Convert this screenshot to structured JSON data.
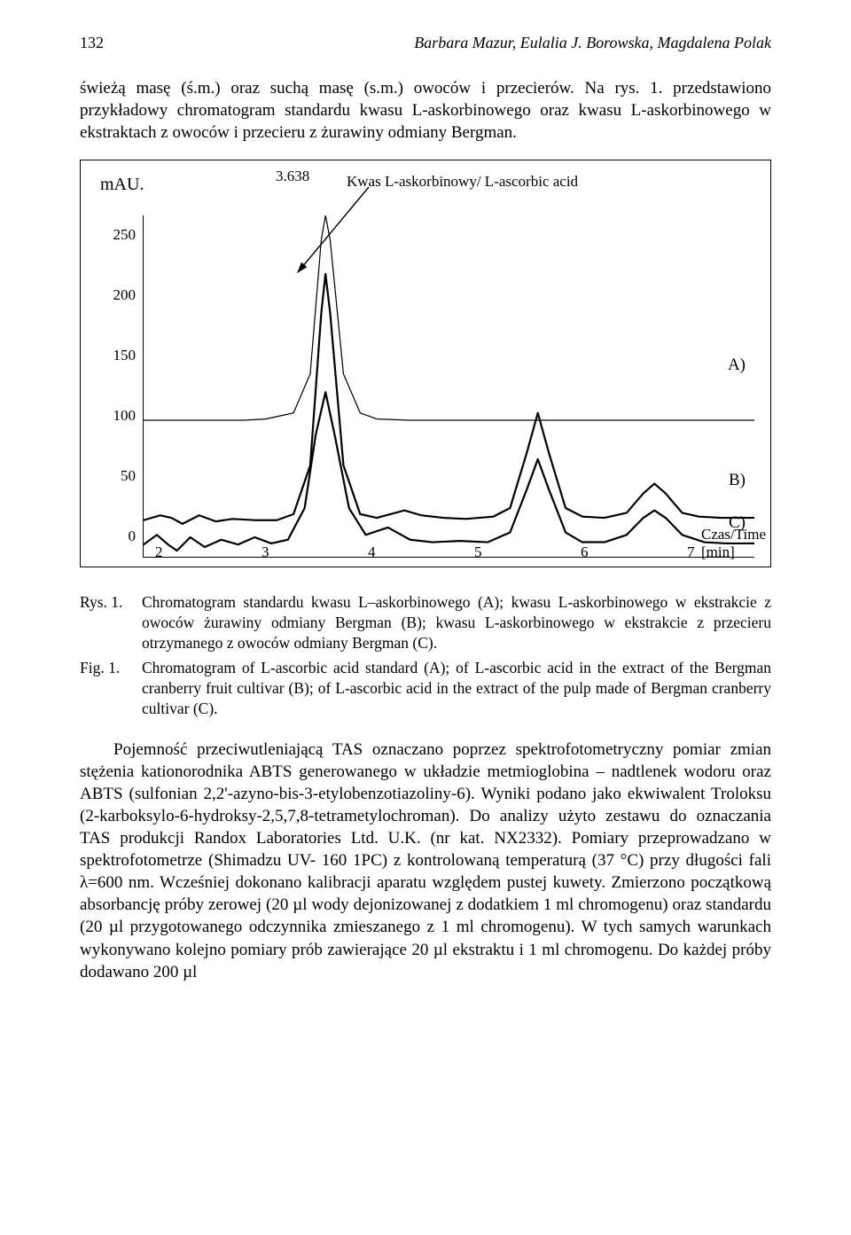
{
  "header": {
    "page_number": "132",
    "authors": "Barbara Mazur, Eulalia J. Borowska, Magdalena Polak"
  },
  "intro_paragraph": "świeżą masę (ś.m.) oraz suchą masę (s.m.) owoców i przecierów. Na rys. 1. przedstawiono przykładowy chromatogram standardu kwasu L-askorbinowego oraz kwasu L-askorbinowego w ekstraktach z owoców i przecieru z żurawiny odmiany Bergman.",
  "chart": {
    "type": "chromatogram",
    "y_axis_label": "mAU.",
    "peak_time_label": "3.638",
    "legend_text": "Kwas L-askorbinowy/ L-ascorbic acid",
    "y_ticks": [
      0,
      50,
      100,
      150,
      200,
      250
    ],
    "y_range": [
      0,
      280
    ],
    "x_ticks": [
      2,
      3,
      4,
      5,
      6,
      7
    ],
    "x_range": [
      2,
      7.5
    ],
    "x_axis_title": "Czas/Time [min]",
    "trace_labels": [
      "A)",
      "B)",
      "C)"
    ],
    "line_color": "#000000",
    "background_color": "#ffffff",
    "frame_color": "#000000",
    "line_widths": {
      "A": 1.2,
      "B": 2.2,
      "C": 2.2
    },
    "traces": {
      "A": {
        "baseline": 112,
        "points": [
          [
            2.0,
            112
          ],
          [
            2.3,
            112
          ],
          [
            2.6,
            112
          ],
          [
            2.9,
            112
          ],
          [
            3.1,
            113
          ],
          [
            3.35,
            118
          ],
          [
            3.5,
            150
          ],
          [
            3.6,
            260
          ],
          [
            3.638,
            280
          ],
          [
            3.68,
            260
          ],
          [
            3.8,
            150
          ],
          [
            3.95,
            118
          ],
          [
            4.1,
            113
          ],
          [
            4.4,
            112
          ],
          [
            5.0,
            112
          ],
          [
            5.4,
            112
          ],
          [
            5.6,
            112
          ],
          [
            5.8,
            112
          ],
          [
            6.0,
            112
          ],
          [
            6.4,
            112
          ],
          [
            6.8,
            112
          ],
          [
            7.2,
            112
          ],
          [
            7.5,
            112
          ]
        ]
      },
      "B": {
        "baseline": 28,
        "points": [
          [
            2.0,
            30
          ],
          [
            2.15,
            34
          ],
          [
            2.25,
            32
          ],
          [
            2.35,
            27
          ],
          [
            2.5,
            34
          ],
          [
            2.65,
            29
          ],
          [
            2.8,
            31
          ],
          [
            3.0,
            30
          ],
          [
            3.2,
            30
          ],
          [
            3.35,
            35
          ],
          [
            3.5,
            75
          ],
          [
            3.6,
            200
          ],
          [
            3.638,
            232
          ],
          [
            3.68,
            200
          ],
          [
            3.8,
            75
          ],
          [
            3.95,
            35
          ],
          [
            4.1,
            32
          ],
          [
            4.35,
            38
          ],
          [
            4.5,
            34
          ],
          [
            4.7,
            32
          ],
          [
            4.9,
            31
          ],
          [
            5.15,
            33
          ],
          [
            5.3,
            40
          ],
          [
            5.45,
            85
          ],
          [
            5.55,
            118
          ],
          [
            5.65,
            85
          ],
          [
            5.8,
            40
          ],
          [
            5.95,
            33
          ],
          [
            6.15,
            32
          ],
          [
            6.35,
            36
          ],
          [
            6.5,
            52
          ],
          [
            6.6,
            60
          ],
          [
            6.7,
            52
          ],
          [
            6.85,
            36
          ],
          [
            7.0,
            33
          ],
          [
            7.2,
            32
          ],
          [
            7.5,
            32
          ]
        ]
      },
      "C": {
        "baseline": 8,
        "points": [
          [
            2.0,
            10
          ],
          [
            2.12,
            18
          ],
          [
            2.22,
            10
          ],
          [
            2.3,
            5
          ],
          [
            2.42,
            16
          ],
          [
            2.55,
            8
          ],
          [
            2.7,
            14
          ],
          [
            2.85,
            10
          ],
          [
            3.0,
            16
          ],
          [
            3.15,
            11
          ],
          [
            3.3,
            14
          ],
          [
            3.45,
            40
          ],
          [
            3.55,
            100
          ],
          [
            3.638,
            135
          ],
          [
            3.72,
            100
          ],
          [
            3.85,
            40
          ],
          [
            4.0,
            18
          ],
          [
            4.2,
            24
          ],
          [
            4.4,
            14
          ],
          [
            4.6,
            12
          ],
          [
            4.85,
            13
          ],
          [
            5.1,
            12
          ],
          [
            5.3,
            20
          ],
          [
            5.45,
            55
          ],
          [
            5.55,
            80
          ],
          [
            5.65,
            55
          ],
          [
            5.8,
            20
          ],
          [
            5.95,
            12
          ],
          [
            6.15,
            12
          ],
          [
            6.35,
            18
          ],
          [
            6.5,
            32
          ],
          [
            6.6,
            38
          ],
          [
            6.7,
            32
          ],
          [
            6.85,
            18
          ],
          [
            7.05,
            12
          ],
          [
            7.25,
            11
          ],
          [
            7.5,
            11
          ]
        ]
      }
    }
  },
  "caption_rys_label": "Rys. 1.",
  "caption_rys_text": "Chromatogram standardu kwasu L–askorbinowego (A); kwasu L-askorbinowego w ekstrakcie z owoców żurawiny odmiany Bergman (B); kwasu L-askorbinowego w ekstrakcie z przecieru otrzymanego z owoców odmiany Bergman (C).",
  "caption_fig_label": "Fig. 1.",
  "caption_fig_text": "Chromatogram of L-ascorbic acid standard (A); of L-ascorbic acid in the extract of the Bergman cranberry fruit cultivar (B); of L-ascorbic acid in the extract of the pulp made of Bergman cranberry cultivar (C).",
  "main_paragraph": "Pojemność przeciwutleniającą TAS oznaczano poprzez spektrofotometryczny pomiar zmian stężenia kationorodnika ABTS generowanego w układzie metmioglobina – nadtlenek wodoru oraz ABTS (sulfonian 2,2'-azyno-bis-3-etylobenzotiazoliny-6). Wyniki podano jako ekwiwalent Troloksu (2-karboksylo-6-hydroksy-2,5,7,8-tetrametylochroman). Do analizy użyto zestawu do oznaczania TAS produkcji Randox Laboratories Ltd. U.K. (nr kat. NX2332). Pomiary przeprowadzano w spektrofotometrze (Shimadzu UV- 160 1PC) z kontrolowaną temperaturą (37 °C) przy długości fali λ=600 nm. Wcześniej dokonano kalibracji aparatu względem pustej kuwety. Zmierzono początkową absorbancję próby zerowej (20 µl wody dejonizowanej z dodatkiem 1 ml chromogenu) oraz standardu (20 µl przygotowanego odczynnika zmieszanego z 1 ml chromogenu). W tych samych warunkach wykonywano kolejno pomiary prób zawierające 20 µl ekstraktu i 1 ml chromogenu. Do każdej próby dodawano 200 µl"
}
